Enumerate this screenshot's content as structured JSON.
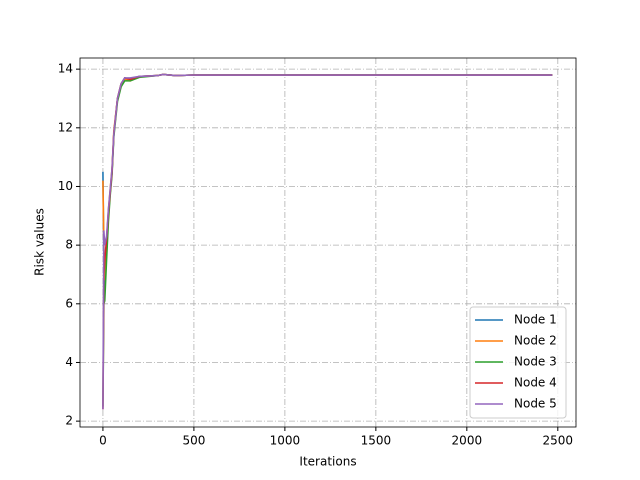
{
  "chart_data": {
    "type": "line",
    "xlabel": "Iterations",
    "ylabel": "Risk values",
    "x": [
      0,
      5,
      10,
      20,
      30,
      40,
      50,
      60,
      80,
      100,
      120,
      150,
      200,
      300,
      330,
      400,
      500,
      1000,
      1500,
      2000,
      2470
    ],
    "series": [
      {
        "name": "Node 1",
        "color": "#1f77b4",
        "values": [
          10.5,
          7.5,
          6.5,
          7.8,
          9.0,
          9.8,
          10.5,
          11.8,
          13.0,
          13.5,
          13.7,
          13.65,
          13.75,
          13.78,
          13.82,
          13.78,
          13.8,
          13.8,
          13.8,
          13.8,
          13.8
        ]
      },
      {
        "name": "Node 2",
        "color": "#ff7f0e",
        "values": [
          10.2,
          8.0,
          6.8,
          8.0,
          9.2,
          9.9,
          10.6,
          11.9,
          13.0,
          13.5,
          13.65,
          13.6,
          13.75,
          13.78,
          13.82,
          13.78,
          13.8,
          13.8,
          13.8,
          13.8,
          13.8
        ]
      },
      {
        "name": "Node 3",
        "color": "#2ca02c",
        "values": [
          2.5,
          6.0,
          6.1,
          7.5,
          8.8,
          9.7,
          10.4,
          11.7,
          12.9,
          13.4,
          13.6,
          13.6,
          13.72,
          13.78,
          13.82,
          13.78,
          13.8,
          13.8,
          13.8,
          13.8,
          13.8
        ]
      },
      {
        "name": "Node 4",
        "color": "#d62728",
        "values": [
          2.4,
          7.0,
          7.5,
          8.2,
          9.1,
          9.8,
          10.5,
          11.8,
          13.0,
          13.5,
          13.7,
          13.65,
          13.75,
          13.78,
          13.82,
          13.78,
          13.8,
          13.8,
          13.8,
          13.8,
          13.8
        ]
      },
      {
        "name": "Node 5",
        "color": "#9467bd",
        "values": [
          2.4,
          8.5,
          8.0,
          8.3,
          9.2,
          9.9,
          10.6,
          11.8,
          13.0,
          13.5,
          13.7,
          13.7,
          13.75,
          13.78,
          13.82,
          13.78,
          13.8,
          13.8,
          13.8,
          13.8,
          13.8
        ]
      }
    ],
    "xlim": [
      -126,
      2600
    ],
    "ylim": [
      1.8,
      14.38
    ],
    "xticks": [
      0,
      500,
      1000,
      1500,
      2000,
      2500
    ],
    "yticks": [
      2,
      4,
      6,
      8,
      10,
      12,
      14
    ],
    "grid": true,
    "legend": "lower right"
  }
}
